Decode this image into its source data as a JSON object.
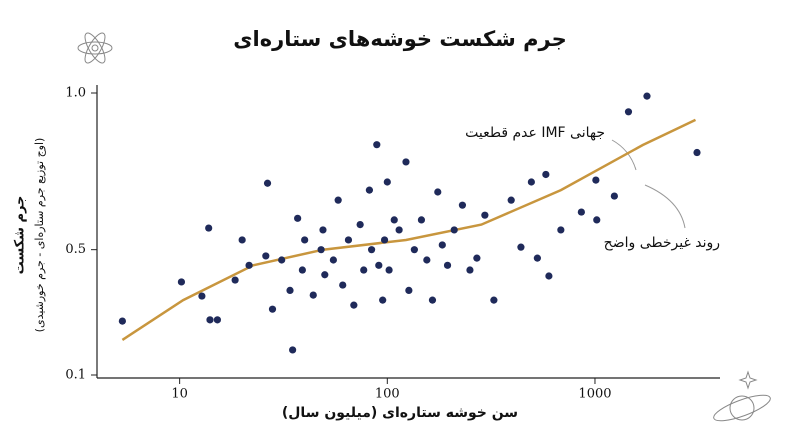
{
  "chart_data": {
    "type": "scatter",
    "title": "جرم شکست خوشه‌های ستاره‌ای",
    "x_label": "سن خوشه ستاره‌ای (میلیون سال)",
    "y_label": "جرم شکست",
    "y_sublabel": "(اوج توزیع جرم ستاره‌ای - جرم خورشیدی)",
    "x_log": true,
    "xlim": [
      4,
      4000
    ],
    "xticks": [
      10,
      100,
      1000
    ],
    "ylim": [
      0.1,
      1.0
    ],
    "yticks": [
      0.1,
      0.5,
      {
        "value": 1,
        "label": "1.0"
      }
    ],
    "color": "#1f2a5a",
    "x": [
      5.3,
      10.2,
      12.8,
      13.8,
      14,
      15.2,
      18.5,
      20,
      21.6,
      26,
      26.5,
      28,
      31,
      34,
      35,
      37,
      39,
      40,
      44,
      48,
      49,
      50,
      55,
      58,
      61,
      65,
      69,
      74,
      77,
      82,
      84,
      89,
      91,
      95,
      97,
      100,
      102,
      108,
      114,
      123,
      127,
      135,
      146,
      155,
      165,
      175,
      184,
      195,
      210,
      230,
      250,
      270,
      295,
      326,
      395,
      440,
      494,
      528,
      580,
      600,
      685,
      860,
      1010,
      1020,
      1240,
      1450,
      1780,
      3100
    ],
    "values": [
      0.272,
      0.397,
      0.352,
      0.569,
      0.276,
      0.276,
      0.403,
      0.531,
      0.45,
      0.48,
      0.712,
      0.31,
      0.467,
      0.37,
      0.18,
      0.6,
      0.435,
      0.531,
      0.355,
      0.5,
      0.563,
      0.42,
      0.467,
      0.658,
      0.387,
      0.531,
      0.323,
      0.58,
      0.435,
      0.69,
      0.5,
      0.835,
      0.45,
      0.339,
      0.531,
      0.716,
      0.435,
      0.595,
      0.563,
      0.78,
      0.37,
      0.5,
      0.595,
      0.467,
      0.339,
      0.684,
      0.515,
      0.45,
      0.563,
      0.642,
      0.435,
      0.473,
      0.61,
      0.339,
      0.658,
      0.508,
      0.716,
      0.473,
      0.74,
      0.416,
      0.563,
      0.62,
      0.722,
      0.595,
      0.671,
      0.94,
      0.99,
      0.81
    ],
    "fit": {
      "label": "روند غیرخطی واضح",
      "color": "#c8963e",
      "x": [
        5.3,
        10.4,
        22.6,
        49,
        123,
        284,
        685,
        1700,
        3050
      ],
      "values": [
        0.212,
        0.339,
        0.45,
        0.5,
        0.531,
        0.58,
        0.69,
        0.834,
        0.914
      ]
    },
    "annotation": "عدم قطعیت IMF جهانی"
  }
}
